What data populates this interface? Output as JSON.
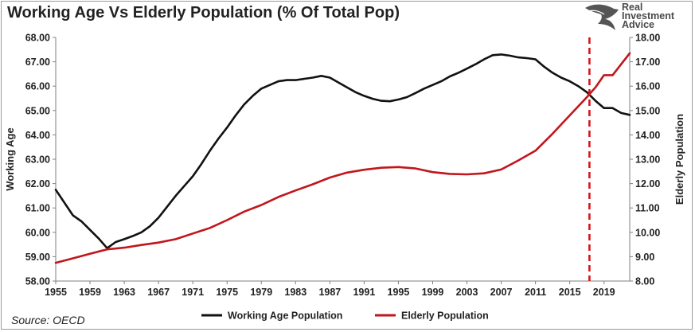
{
  "title": "Working Age Vs Elderly Population (% Of Total Pop)",
  "logo": {
    "line1": "Real",
    "line2": "Investment",
    "line3": "Advice"
  },
  "source": "Source: OECD",
  "colors": {
    "working": "#111111",
    "elderly": "#c0161c",
    "marker": "#d6151b",
    "axis": "#7f7f7f"
  },
  "chart_data": {
    "type": "line",
    "title": "Working Age Vs Elderly Population (% Of Total Pop)",
    "ylabel_left": "Working Age",
    "ylabel_right": "Elderly Population",
    "ylim_left": [
      58,
      68
    ],
    "ylim_right": [
      8,
      18
    ],
    "xlim": [
      1955,
      2022
    ],
    "x_ticks": [
      "1955",
      "1959",
      "1963",
      "1967",
      "1971",
      "1975",
      "1979",
      "1983",
      "1987",
      "1991",
      "1995",
      "1999",
      "2003",
      "2007",
      "2011",
      "2015",
      "2019"
    ],
    "y_ticks_left": [
      "58.00",
      "59.00",
      "60.00",
      "61.00",
      "62.00",
      "63.00",
      "64.00",
      "65.00",
      "66.00",
      "67.00",
      "68.00"
    ],
    "y_ticks_right": [
      "8.00",
      "9.00",
      "10.00",
      "11.00",
      "12.00",
      "13.00",
      "14.00",
      "15.00",
      "16.00",
      "17.00",
      "18.00"
    ],
    "marker_year": 2017.3,
    "legend": [
      "Working Age Population",
      "Elderly Population"
    ],
    "series": [
      {
        "name": "Working Age Population",
        "axis": "left",
        "x": [
          1955,
          1957,
          1958,
          1959,
          1960,
          1961,
          1962,
          1963,
          1964,
          1965,
          1966,
          1967,
          1968,
          1969,
          1970,
          1971,
          1972,
          1973,
          1974,
          1975,
          1976,
          1977,
          1978,
          1979,
          1980,
          1981,
          1982,
          1983,
          1984,
          1985,
          1986,
          1987,
          1988,
          1989,
          1990,
          1991,
          1992,
          1993,
          1994,
          1995,
          1996,
          1997,
          1998,
          1999,
          2000,
          2001,
          2002,
          2003,
          2004,
          2005,
          2006,
          2007,
          2008,
          2009,
          2010,
          2011,
          2012,
          2013,
          2014,
          2015,
          2016,
          2017,
          2018,
          2019,
          2020,
          2021,
          2022
        ],
        "values": [
          61.75,
          60.7,
          60.45,
          60.1,
          59.75,
          59.35,
          59.6,
          59.72,
          59.85,
          60.0,
          60.25,
          60.6,
          61.05,
          61.5,
          61.9,
          62.3,
          62.8,
          63.35,
          63.85,
          64.3,
          64.8,
          65.25,
          65.6,
          65.9,
          66.05,
          66.2,
          66.25,
          66.25,
          66.3,
          66.35,
          66.42,
          66.35,
          66.15,
          65.95,
          65.75,
          65.6,
          65.48,
          65.4,
          65.38,
          65.45,
          65.55,
          65.72,
          65.9,
          66.05,
          66.2,
          66.4,
          66.55,
          66.72,
          66.9,
          67.1,
          67.27,
          67.3,
          67.25,
          67.18,
          67.15,
          67.1,
          66.8,
          66.55,
          66.35,
          66.2,
          66.0,
          65.75,
          65.4,
          65.1,
          65.1,
          64.9,
          64.82
        ]
      },
      {
        "name": "Elderly Population",
        "axis": "right",
        "x": [
          1955,
          1957,
          1959,
          1961,
          1963,
          1965,
          1967,
          1969,
          1971,
          1973,
          1975,
          1977,
          1979,
          1981,
          1983,
          1985,
          1987,
          1989,
          1991,
          1993,
          1995,
          1997,
          1999,
          2001,
          2003,
          2005,
          2007,
          2009,
          2011,
          2013,
          2015,
          2017,
          2018,
          2019,
          2020,
          2021,
          2022
        ],
        "values": [
          8.75,
          8.93,
          9.12,
          9.3,
          9.37,
          9.48,
          9.58,
          9.72,
          9.95,
          10.18,
          10.5,
          10.85,
          11.12,
          11.45,
          11.72,
          11.97,
          12.25,
          12.45,
          12.57,
          12.65,
          12.68,
          12.62,
          12.47,
          12.4,
          12.38,
          12.42,
          12.58,
          12.95,
          13.35,
          14.05,
          14.8,
          15.55,
          15.95,
          16.45,
          16.45,
          16.9,
          17.35
        ]
      }
    ]
  }
}
